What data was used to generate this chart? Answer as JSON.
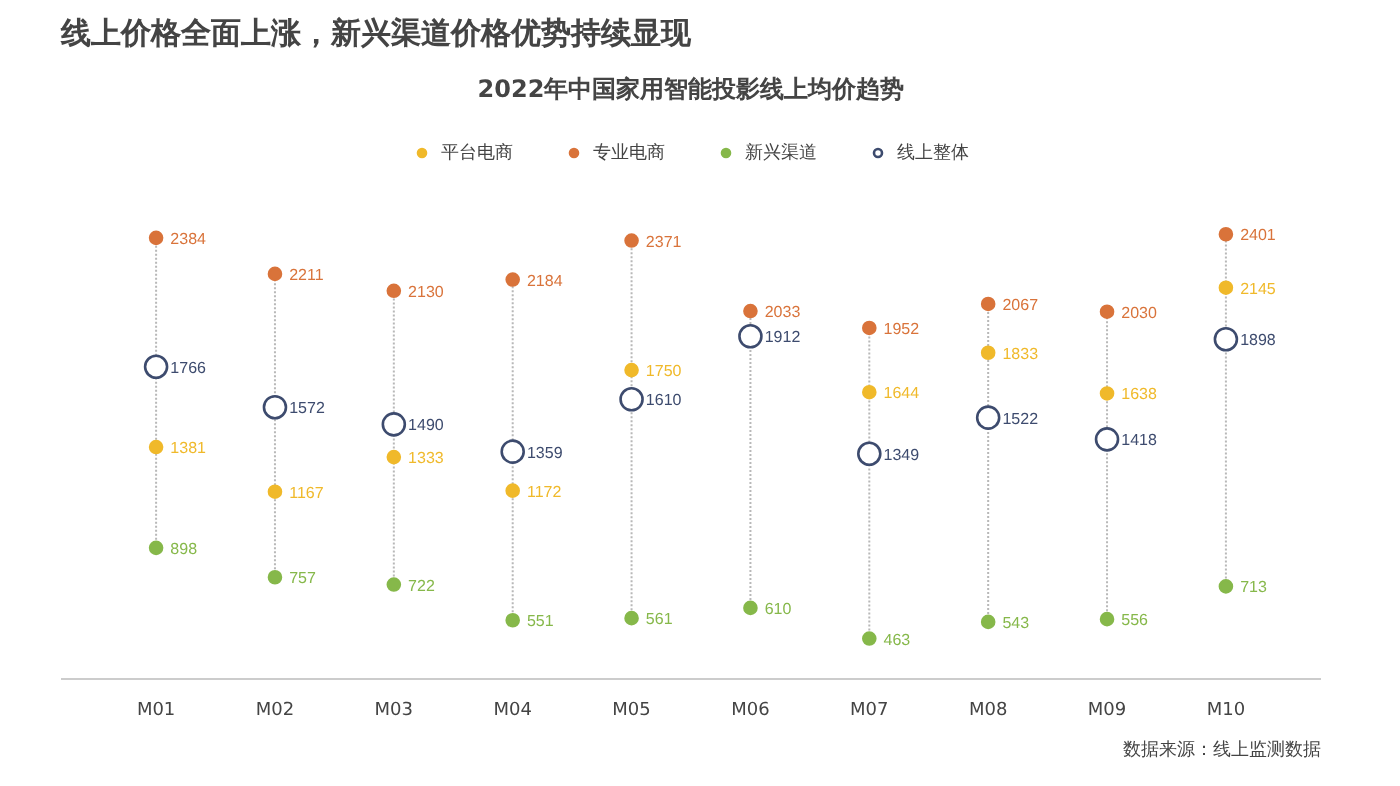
{
  "chart_data": {
    "type": "scatter",
    "title": "线上价格全面上涨，新兴渠道价格优势持续显现",
    "subtitle": "2022年中国家用智能投影线上均价趋势",
    "categories": [
      "M01",
      "M02",
      "M03",
      "M04",
      "M05",
      "M06",
      "M07",
      "M08",
      "M09",
      "M10"
    ],
    "series": [
      {
        "name": "平台电商",
        "color": "#f0b92a",
        "marker": "circle",
        "values": [
          1381,
          1167,
          1333,
          1172,
          1750,
          null,
          1644,
          1833,
          1638,
          2145
        ]
      },
      {
        "name": "专业电商",
        "color": "#d9733a",
        "marker": "circle",
        "values": [
          2384,
          2211,
          2130,
          2184,
          2371,
          2033,
          1952,
          2067,
          2030,
          2401
        ]
      },
      {
        "name": "新兴渠道",
        "color": "#86b84a",
        "marker": "circle",
        "values": [
          898,
          757,
          722,
          551,
          561,
          610,
          463,
          543,
          556,
          713
        ]
      },
      {
        "name": "线上整体",
        "color": "#3d4b6e",
        "marker": "circle",
        "values": [
          1766,
          1572,
          1490,
          1359,
          1610,
          1912,
          1349,
          1522,
          1418,
          1898
        ]
      }
    ],
    "data_labels": true,
    "legend": "top",
    "grid": "x",
    "tick_labels": "x",
    "annotations": [
      "数据来源：线上监测数据"
    ]
  }
}
